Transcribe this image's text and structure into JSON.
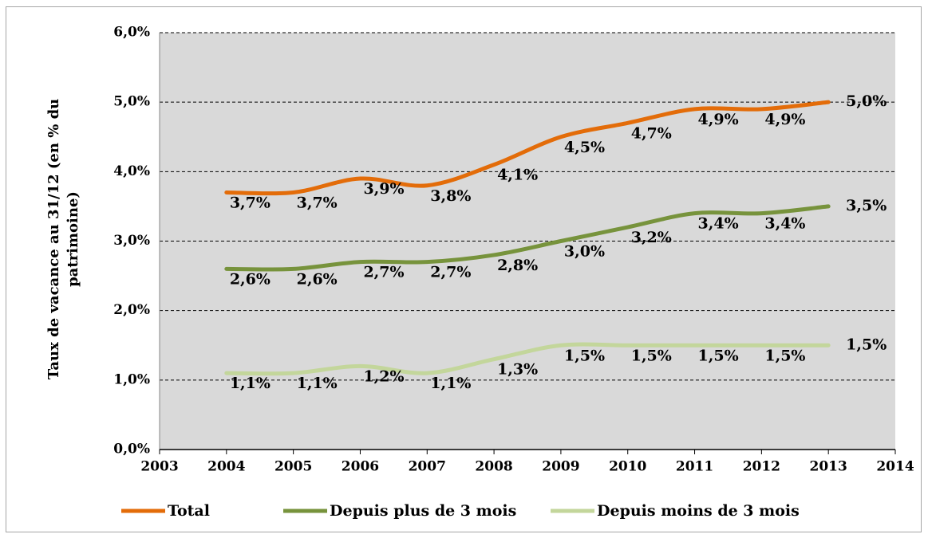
{
  "chart_data": {
    "type": "line",
    "smooth": true,
    "grid": true,
    "legend": "bottom",
    "y_label": [
      "Taux de vacance au 31/12 (en % du",
      "patrimoine)"
    ],
    "x": [
      2004,
      2005,
      2006,
      2007,
      2008,
      2009,
      2010,
      2011,
      2012,
      2013
    ],
    "xlim": [
      2003,
      2014
    ],
    "xticks": [
      2003,
      2004,
      2005,
      2006,
      2007,
      2008,
      2009,
      2010,
      2011,
      2012,
      2013,
      2014
    ],
    "ylim": [
      0,
      6
    ],
    "yticks": [
      {
        "value": 0,
        "label": "0,0%"
      },
      {
        "value": 1,
        "label": "1,0%"
      },
      {
        "value": 2,
        "label": "2,0%"
      },
      {
        "value": 3,
        "label": "3,0%"
      },
      {
        "value": 4,
        "label": "4,0%"
      },
      {
        "value": 5,
        "label": "5,0%"
      },
      {
        "value": 6,
        "label": "6,0%"
      }
    ],
    "series": [
      {
        "name": "Total",
        "color": "#e36c09",
        "values": [
          3.7,
          3.7,
          3.9,
          3.8,
          4.1,
          4.5,
          4.7,
          4.9,
          4.9,
          5.0
        ],
        "value_labels": [
          "3,7%",
          "3,7%",
          "3,9%",
          "3,8%",
          "4,1%",
          "4,5%",
          "4,7%",
          "4,9%",
          "4,9%",
          "5,0%"
        ]
      },
      {
        "name": "Depuis plus de 3 mois",
        "color": "#77933c",
        "values": [
          2.6,
          2.6,
          2.7,
          2.7,
          2.8,
          3.0,
          3.2,
          3.4,
          3.4,
          3.5
        ],
        "value_labels": [
          "2,6%",
          "2,6%",
          "2,7%",
          "2,7%",
          "2,8%",
          "3,0%",
          "3,2%",
          "3,4%",
          "3,4%",
          "3,5%"
        ]
      },
      {
        "name": "Depuis moins de 3 mois",
        "color": "#c3d69b",
        "values": [
          1.1,
          1.1,
          1.2,
          1.1,
          1.3,
          1.5,
          1.5,
          1.5,
          1.5,
          1.5
        ],
        "value_labels": [
          "1,1%",
          "1,1%",
          "1,2%",
          "1,1%",
          "1,3%",
          "1,5%",
          "1,5%",
          "1,5%",
          "1,5%",
          "1,5%"
        ]
      }
    ]
  }
}
